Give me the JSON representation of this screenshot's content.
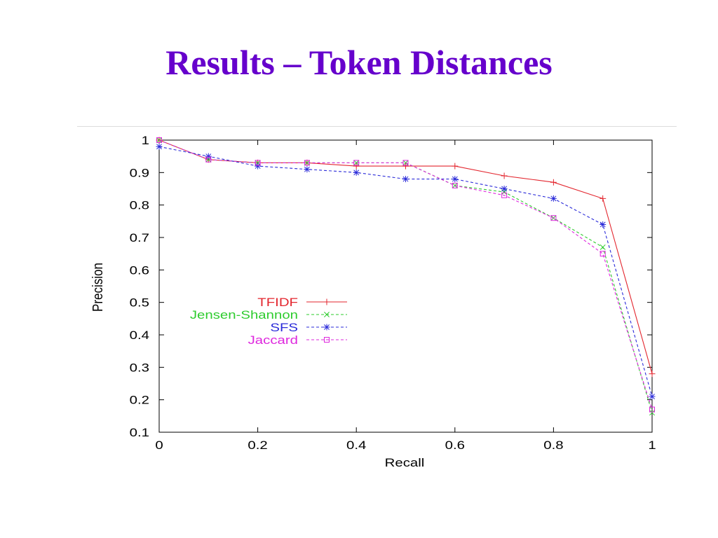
{
  "slide": {
    "title": "Results – Token Distances"
  },
  "colors": {
    "title": "#6600CC",
    "divider": "#dcdcdc",
    "axis": "#000000"
  },
  "chart_data": {
    "type": "line",
    "xlabel": "Recall",
    "ylabel": "Precision",
    "xlim": [
      0,
      1
    ],
    "ylim": [
      0.1,
      1
    ],
    "xticks": [
      "0",
      "0.2",
      "0.4",
      "0.6",
      "0.8",
      "1"
    ],
    "yticks": [
      "0.1",
      "0.2",
      "0.3",
      "0.4",
      "0.5",
      "0.6",
      "0.7",
      "0.8",
      "0.9",
      "1"
    ],
    "grid": false,
    "legend_position": "middle-left",
    "x": [
      0,
      0.1,
      0.2,
      0.3,
      0.4,
      0.5,
      0.6,
      0.7,
      0.8,
      0.9,
      1
    ],
    "series": [
      {
        "name": "TFIDF",
        "color": "#e3262e",
        "line_style": "solid",
        "marker": "plus",
        "values": [
          1.0,
          0.94,
          0.93,
          0.93,
          0.92,
          0.92,
          0.92,
          0.89,
          0.87,
          0.82,
          0.28
        ]
      },
      {
        "name": "Jensen-Shannon",
        "color": "#2ecc2e",
        "line_style": "dashed",
        "marker": "cross",
        "values": [
          1.0,
          0.94,
          0.93,
          0.93,
          0.93,
          0.93,
          0.86,
          0.84,
          0.76,
          0.67,
          0.16
        ]
      },
      {
        "name": "SFS",
        "color": "#2b2bd9",
        "line_style": "dashed",
        "marker": "star",
        "values": [
          0.98,
          0.95,
          0.92,
          0.91,
          0.9,
          0.88,
          0.88,
          0.85,
          0.82,
          0.74,
          0.21
        ]
      },
      {
        "name": "Jaccard",
        "color": "#de27de",
        "line_style": "dashed",
        "marker": "square",
        "values": [
          1.0,
          0.94,
          0.93,
          0.93,
          0.93,
          0.93,
          0.86,
          0.83,
          0.76,
          0.65,
          0.17
        ]
      }
    ]
  }
}
